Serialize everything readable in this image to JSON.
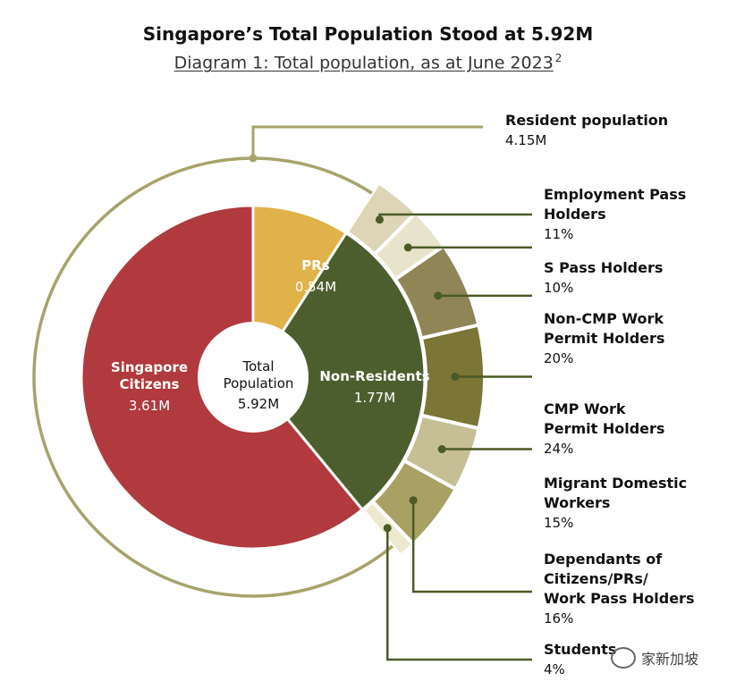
{
  "title": "Singapore’s Total Population Stood at 5.92M",
  "subtitle": "Diagram 1: Total population, as at June 2023",
  "subtitle_sup": "2",
  "watermark": "家新加坡",
  "colors": {
    "citizens": "#b03a3e",
    "prs": "#e0b24a",
    "non_residents": "#4d5e2e",
    "resident_ring": "#a7a36a",
    "leader": "#4b5a26",
    "text": "#111111"
  },
  "chart_data": {
    "type": "pie",
    "center": {
      "line1": "Total",
      "line2": "Population",
      "line3": "5.92M"
    },
    "inner": [
      {
        "name": "Singapore Citizens",
        "label_lines": [
          "Singapore",
          "Citizens"
        ],
        "value_label": "3.61M",
        "value": 3.61,
        "color": "#b03a3e"
      },
      {
        "name": "PRs",
        "label_lines": [
          "PRs"
        ],
        "value_label": "0.54M",
        "value": 0.54,
        "color": "#e0b24a"
      },
      {
        "name": "Non-Residents",
        "label_lines": [
          "Non-Residents"
        ],
        "value_label": "1.77M",
        "value": 1.77,
        "color": "#4d5e2e"
      }
    ],
    "resident_group": {
      "label": "Resident population",
      "value_label": "4.15M",
      "value": 4.15
    },
    "outer": [
      {
        "label_lines": [
          "Employment Pass",
          "Holders"
        ],
        "percent_label": "11%",
        "percent": 11,
        "color": "#ddd5b6"
      },
      {
        "label_lines": [
          "S Pass Holders"
        ],
        "percent_label": "10%",
        "percent": 10,
        "color": "#e8e4cb"
      },
      {
        "label_lines": [
          "Non-CMP Work",
          "Permit Holders"
        ],
        "percent_label": "20%",
        "percent": 20,
        "color": "#8f8556"
      },
      {
        "label_lines": [
          "CMP Work",
          "Permit Holders"
        ],
        "percent_label": "24%",
        "percent": 24,
        "color": "#7b7536"
      },
      {
        "label_lines": [
          "Migrant Domestic",
          "Workers"
        ],
        "percent_label": "15%",
        "percent": 15,
        "color": "#c6bf95"
      },
      {
        "label_lines": [
          "Dependants of",
          "Citizens/PRs/",
          "Work Pass Holders"
        ],
        "percent_label": "16%",
        "percent": 16,
        "color": "#a9a064"
      },
      {
        "label_lines": [
          "Students"
        ],
        "percent_label": "4%",
        "percent": 4,
        "color": "#ece9cf"
      }
    ]
  }
}
